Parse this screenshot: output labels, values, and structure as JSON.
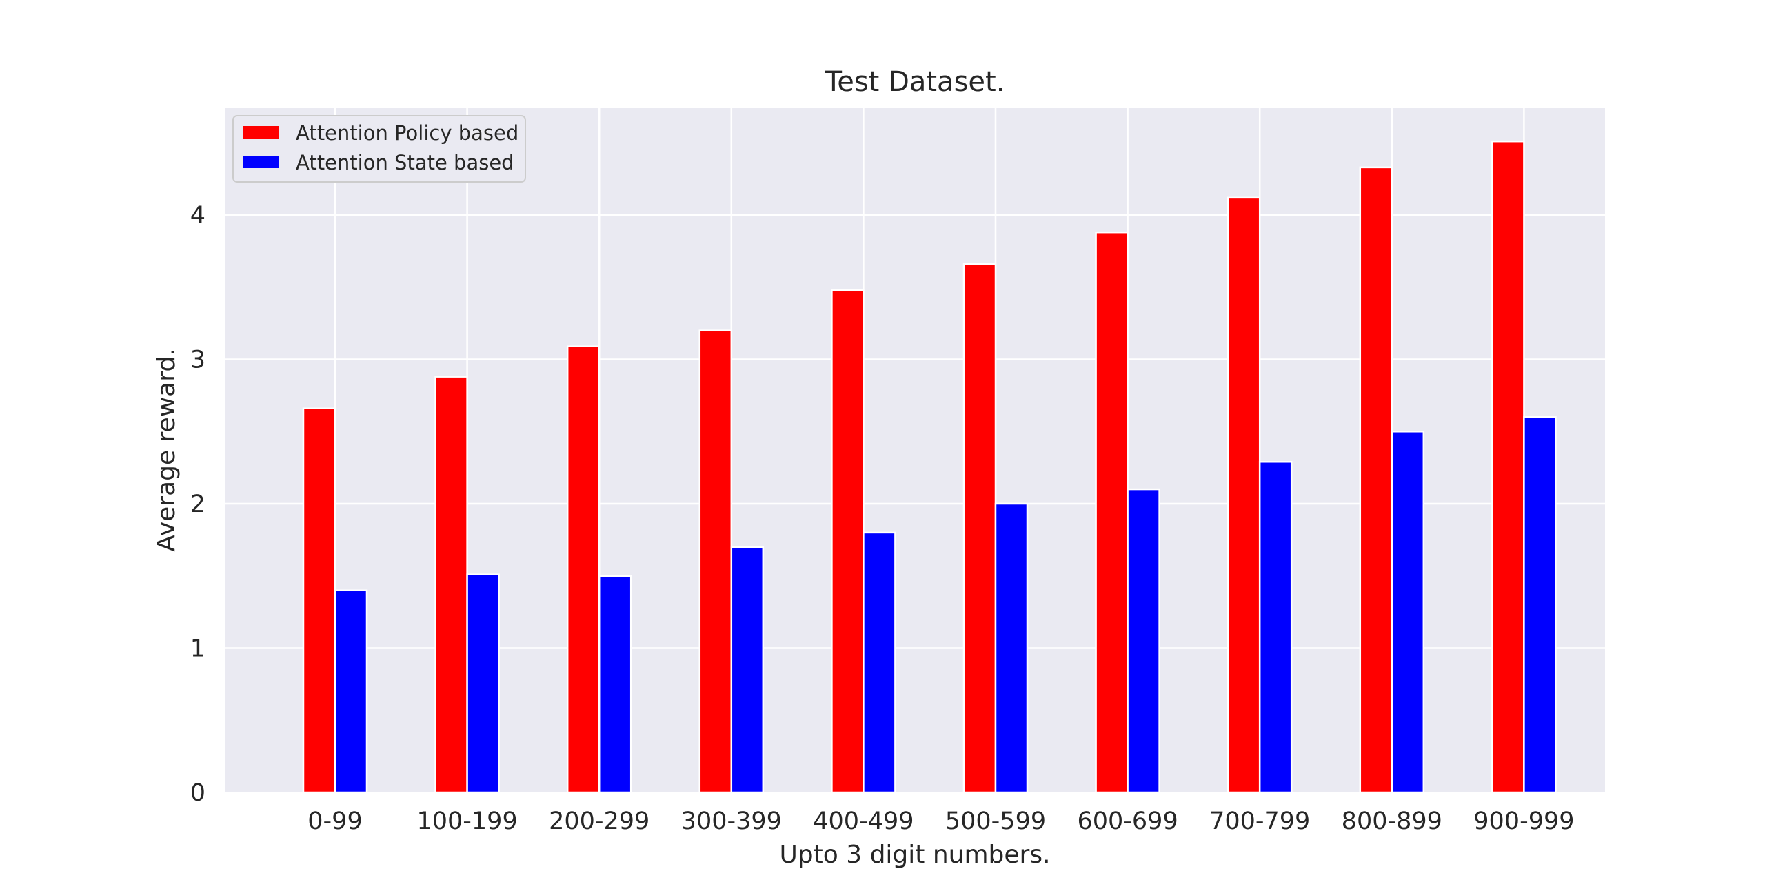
{
  "chart_data": {
    "type": "bar",
    "title": "Test Dataset.",
    "xlabel": "Upto 3 digit numbers.",
    "ylabel": "Average reward.",
    "categories": [
      "0-99",
      "100-199",
      "200-299",
      "300-399",
      "400-499",
      "500-599",
      "600-699",
      "700-799",
      "800-899",
      "900-999"
    ],
    "series": [
      {
        "name": "Attention Policy based",
        "color": "#ff0000",
        "values": [
          2.66,
          2.88,
          3.09,
          3.2,
          3.48,
          3.66,
          3.88,
          4.12,
          4.33,
          4.51
        ]
      },
      {
        "name": "Attention State based",
        "color": "#0000ff",
        "values": [
          1.4,
          1.51,
          1.5,
          1.7,
          1.8,
          2.0,
          2.1,
          2.29,
          2.5,
          2.6
        ]
      }
    ],
    "ylim": [
      0,
      4.74
    ],
    "yticks": [
      0,
      1,
      2,
      3,
      4
    ],
    "grid": true,
    "legend_position": "top-left",
    "background_color": "#eaeaf2",
    "grid_color": "#ffffff"
  }
}
